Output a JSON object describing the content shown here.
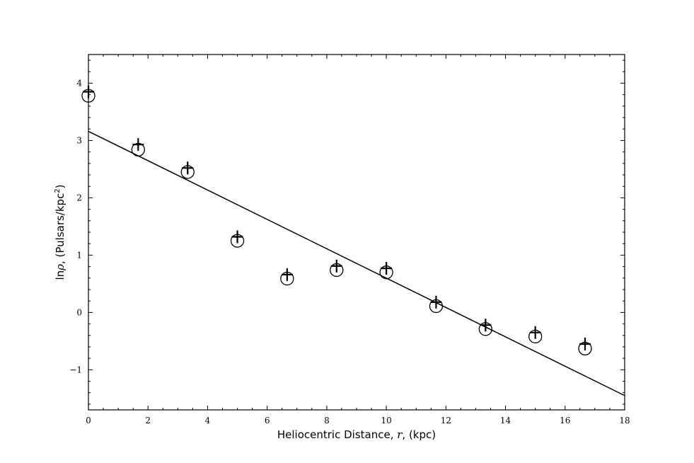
{
  "chart_data": {
    "type": "scatter",
    "title": "",
    "xlabel": {
      "pre": "Heliocentric Distance, ",
      "var": "r",
      "post": ", (kpc)"
    },
    "ylabel": {
      "pre": "ln",
      "var": "ρ",
      "post": ", (Pulsars/kpc",
      "sup": "2",
      "end": ")"
    },
    "xlim": [
      0,
      18
    ],
    "ylim": [
      -1.7,
      4.5
    ],
    "xticks": [
      0,
      2,
      4,
      6,
      8,
      10,
      12,
      14,
      16,
      18
    ],
    "yticks": [
      -1,
      0,
      1,
      2,
      3,
      4
    ],
    "ytick_labels": [
      "−1",
      "0",
      "1",
      "2",
      "3",
      "4"
    ],
    "grid": false,
    "series": [
      {
        "marker": "circle",
        "x": [
          0,
          1.67,
          3.33,
          5.0,
          6.67,
          8.33,
          10.0,
          11.67,
          13.33,
          15.0,
          16.67
        ],
        "y": [
          3.78,
          2.84,
          2.45,
          1.25,
          0.59,
          0.74,
          0.7,
          0.11,
          -0.29,
          -0.42,
          -0.63
        ]
      },
      {
        "marker": "plus",
        "x": [
          0,
          1.67,
          3.33,
          5.0,
          6.67,
          8.33,
          10.0,
          11.67,
          13.33,
          15.0,
          16.67
        ],
        "y": [
          3.85,
          2.93,
          2.52,
          1.32,
          0.66,
          0.81,
          0.77,
          0.18,
          -0.22,
          -0.35,
          -0.55
        ]
      },
      {
        "marker": "line",
        "x": [
          0,
          18
        ],
        "y": [
          3.16,
          -1.45
        ]
      }
    ],
    "colors": {
      "ink": "#000000",
      "background": "#ffffff"
    }
  }
}
